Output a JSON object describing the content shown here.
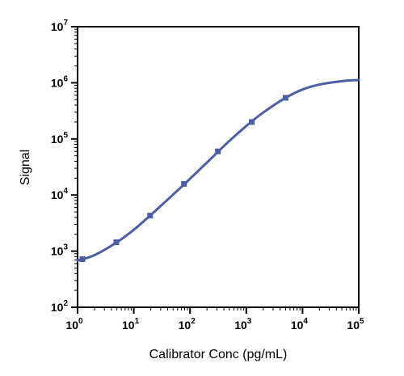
{
  "chart_data": {
    "type": "line",
    "title": "",
    "xlabel": "Calibrator Conc (pg/mL)",
    "ylabel": "Signal",
    "xscale": "log",
    "yscale": "log",
    "xlim": [
      1,
      100000
    ],
    "ylim": [
      100,
      10000000
    ],
    "grid": false,
    "legend": "none",
    "x_ticks": [
      {
        "base": "10",
        "exp": "0",
        "value": 1
      },
      {
        "base": "10",
        "exp": "1",
        "value": 10
      },
      {
        "base": "10",
        "exp": "2",
        "value": 100
      },
      {
        "base": "10",
        "exp": "3",
        "value": 1000
      },
      {
        "base": "10",
        "exp": "4",
        "value": 10000
      },
      {
        "base": "10",
        "exp": "5",
        "value": 100000
      }
    ],
    "y_ticks": [
      {
        "base": "10",
        "exp": "2",
        "value": 100
      },
      {
        "base": "10",
        "exp": "3",
        "value": 1000
      },
      {
        "base": "10",
        "exp": "4",
        "value": 10000
      },
      {
        "base": "10",
        "exp": "5",
        "value": 100000
      },
      {
        "base": "10",
        "exp": "6",
        "value": 1000000
      },
      {
        "base": "10",
        "exp": "7",
        "value": 10000000
      }
    ],
    "series": [
      {
        "color": "#4a5fa5",
        "marker": "square",
        "points": [
          {
            "x": 1.22,
            "y": 720
          },
          {
            "x": 4.88,
            "y": 1440
          },
          {
            "x": 19.5,
            "y": 4300
          },
          {
            "x": 78.1,
            "y": 15800
          },
          {
            "x": 313,
            "y": 60000
          },
          {
            "x": 1250,
            "y": 200000
          },
          {
            "x": 5000,
            "y": 540000
          }
        ],
        "fit_curve": [
          {
            "x": 1,
            "y": 680
          },
          {
            "x": 2,
            "y": 850
          },
          {
            "x": 5,
            "y": 1440
          },
          {
            "x": 10,
            "y": 2400
          },
          {
            "x": 20,
            "y": 4400
          },
          {
            "x": 50,
            "y": 10200
          },
          {
            "x": 100,
            "y": 19500
          },
          {
            "x": 200,
            "y": 38000
          },
          {
            "x": 500,
            "y": 92000
          },
          {
            "x": 1000,
            "y": 170000
          },
          {
            "x": 2000,
            "y": 295000
          },
          {
            "x": 5000,
            "y": 540000
          },
          {
            "x": 10000,
            "y": 760000
          },
          {
            "x": 20000,
            "y": 930000
          },
          {
            "x": 50000,
            "y": 1070000
          },
          {
            "x": 100000,
            "y": 1120000
          }
        ]
      }
    ]
  }
}
